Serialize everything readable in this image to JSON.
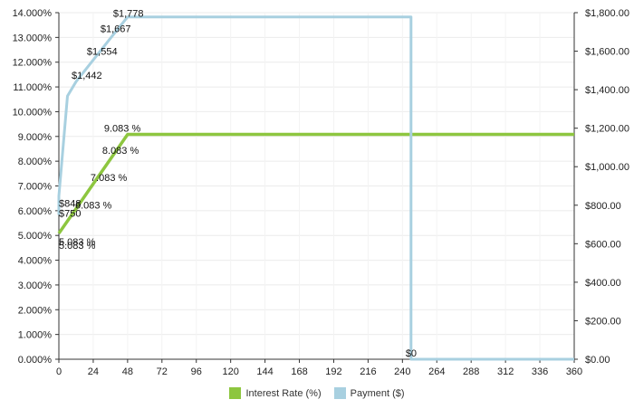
{
  "chart_data": {
    "type": "line",
    "title": "",
    "xlabel": "",
    "ylabel": "",
    "x_ticks": [
      0,
      24,
      48,
      72,
      96,
      120,
      144,
      168,
      192,
      216,
      240,
      264,
      288,
      312,
      336,
      360
    ],
    "x_range": [
      0,
      360
    ],
    "y_left": {
      "range": [
        0,
        14
      ],
      "ticks": [
        0,
        1,
        2,
        3,
        4,
        5,
        6,
        7,
        8,
        9,
        10,
        11,
        12,
        13,
        14
      ],
      "tick_labels": [
        "0.000%",
        "1.000%",
        "2.000%",
        "3.000%",
        "4.000%",
        "5.000%",
        "6.000%",
        "7.000%",
        "8.000%",
        "9.000%",
        "10.000%",
        "11.000%",
        "12.000%",
        "13.000%",
        "14.000%"
      ]
    },
    "y_right": {
      "range": [
        0,
        1800
      ],
      "ticks": [
        0,
        200,
        400,
        600,
        800,
        1000,
        1200,
        1400,
        1600,
        1800
      ],
      "tick_labels": [
        "$0.00",
        "$200.00",
        "$400.00",
        "$600.00",
        "$800.00",
        "$1,000.00",
        "$1,200.00",
        "$1,400.00",
        "$1,600.00",
        "$1,800.00"
      ]
    },
    "grid": true,
    "legend_position": "bottom-center",
    "series": [
      {
        "name": "Interest Rate (%)",
        "axis": "left",
        "color": "#8dc63f",
        "points": [
          [
            0,
            5.083
          ],
          [
            12,
            6.083
          ],
          [
            24,
            7.083
          ],
          [
            36,
            8.083
          ],
          [
            48,
            9.083
          ],
          [
            360,
            9.083
          ]
        ],
        "labels": [
          {
            "x": 0,
            "y": 5.083,
            "text": "5.083 %"
          },
          {
            "x": 0,
            "y": 5.083,
            "text": "5.083 %"
          },
          {
            "x": 12,
            "y": 6.083,
            "text": "6.083 %"
          },
          {
            "x": 24,
            "y": 7.083,
            "text": "7.083 %"
          },
          {
            "x": 36,
            "y": 8.083,
            "text": "8.083 %"
          },
          {
            "x": 48,
            "y": 9.083,
            "text": "9.083 %"
          }
        ]
      },
      {
        "name": "Payment ($)",
        "axis": "right",
        "color": "#a8d0e0",
        "points": [
          [
            0,
            750
          ],
          [
            0,
            848
          ],
          [
            6,
            1367
          ],
          [
            12,
            1442
          ],
          [
            24,
            1554
          ],
          [
            36,
            1667
          ],
          [
            48,
            1778
          ],
          [
            246,
            1778
          ],
          [
            246,
            0
          ],
          [
            360,
            0
          ]
        ],
        "labels": [
          {
            "x": 0,
            "y": 750,
            "text": "$750"
          },
          {
            "x": 0,
            "y": 848,
            "text": "$848"
          },
          {
            "x": 12,
            "y": 1442,
            "text": "$1,442"
          },
          {
            "x": 24,
            "y": 1554,
            "text": "$1,554"
          },
          {
            "x": 36,
            "y": 1667,
            "text": "$1,667"
          },
          {
            "x": 48,
            "y": 1778,
            "text": "$1,778"
          },
          {
            "x": 246,
            "y": 0,
            "text": "$0"
          }
        ]
      }
    ]
  }
}
